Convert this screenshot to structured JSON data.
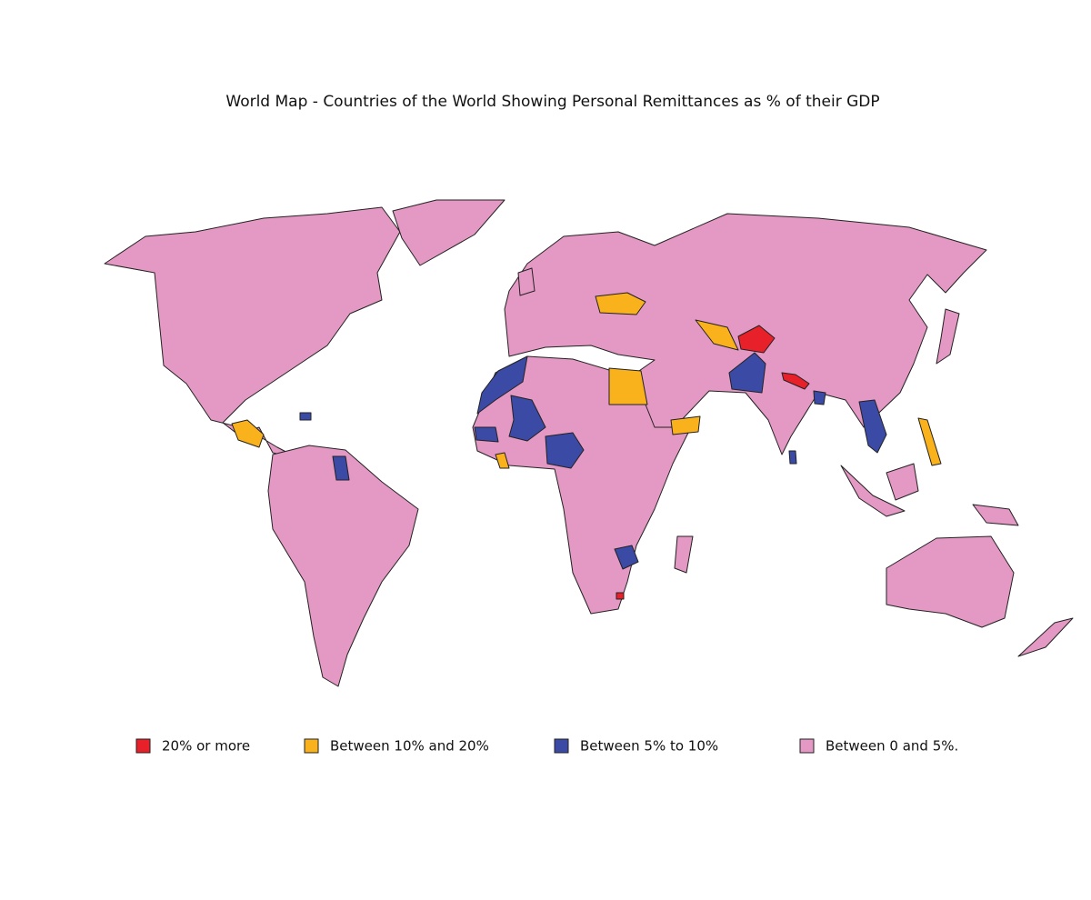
{
  "title": "World Map - Countries of the World Showing Personal Remittances as % of their GDP",
  "legend": [
    {
      "label": "20% or more",
      "color": "#e8202a"
    },
    {
      "label": "Between 10% and 20%",
      "color": "#f9b21c"
    },
    {
      "label": "Between 5% to 10%",
      "color": "#3a4aa5"
    },
    {
      "label": "Between 0 and 5%.",
      "color": "#e498c4"
    }
  ]
}
